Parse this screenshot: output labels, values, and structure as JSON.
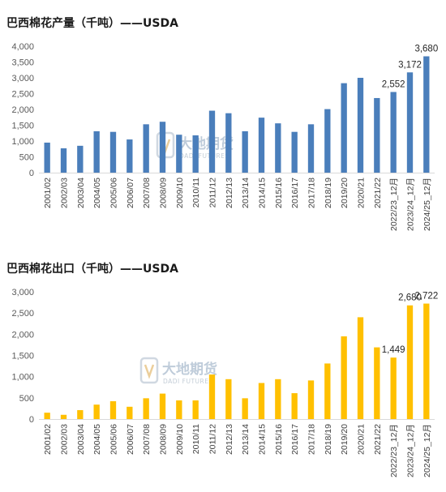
{
  "watermark": {
    "name": "大地期货",
    "sub": "DADI FUTURES"
  },
  "chart_data": [
    {
      "type": "bar",
      "title": "巴西棉花产量（千吨）——USDA",
      "color": "#4a7ebb",
      "ylim": [
        0,
        4000
      ],
      "yticks": [
        "0",
        "500",
        "1,000",
        "1,500",
        "2,000",
        "2,500",
        "3,000",
        "3,500",
        "4,000"
      ],
      "grid": false,
      "categories": [
        "2001/02",
        "2002/03",
        "2003/04",
        "2004/05",
        "2005/06",
        "2006/07",
        "2007/08",
        "2008/09",
        "2009/10",
        "2010/11",
        "2011/12",
        "2012/13",
        "2013/14",
        "2014/15",
        "2015/16",
        "2016/17",
        "2017/18",
        "2018/19",
        "2019/20",
        "2020/21",
        "2021/22",
        "2022/23_12月",
        "2023/24_12月",
        "2024/25_12月"
      ],
      "values": [
        950,
        770,
        850,
        1310,
        1290,
        1050,
        1530,
        1610,
        1200,
        1180,
        1960,
        1880,
        1310,
        1740,
        1560,
        1290,
        1530,
        2010,
        2830,
        3000,
        2360,
        2552,
        3172,
        3680
      ],
      "data_labels": [
        {
          "index": 21,
          "text": "2,552"
        },
        {
          "index": 22,
          "text": "3,172"
        },
        {
          "index": 23,
          "text": "3,680"
        }
      ]
    },
    {
      "type": "bar",
      "title": "巴西棉花出口（千吨）——USDA",
      "color": "#ffc000",
      "ylim": [
        0,
        3000
      ],
      "yticks": [
        "0",
        "500",
        "1,000",
        "1,500",
        "2,000",
        "2,500",
        "3,000"
      ],
      "grid": false,
      "categories": [
        "2001/02",
        "2002/03",
        "2003/04",
        "2004/05",
        "2005/06",
        "2006/07",
        "2007/08",
        "2008/09",
        "2009/10",
        "2010/11",
        "2011/12",
        "2012/13",
        "2013/14",
        "2014/15",
        "2015/16",
        "2016/17",
        "2017/18",
        "2018/19",
        "2019/20",
        "2020/21",
        "2021/22",
        "2022/23_12月",
        "2023/24_12月",
        "2024/25_12月"
      ],
      "values": [
        150,
        100,
        210,
        340,
        420,
        290,
        490,
        600,
        440,
        440,
        1050,
        940,
        490,
        850,
        940,
        610,
        910,
        1310,
        1950,
        2400,
        1690,
        1449,
        2680,
        2722
      ],
      "data_labels": [
        {
          "index": 21,
          "text": "1,449"
        },
        {
          "index": 22,
          "text": "2,680"
        },
        {
          "index": 23,
          "text": "2,722"
        }
      ]
    }
  ]
}
